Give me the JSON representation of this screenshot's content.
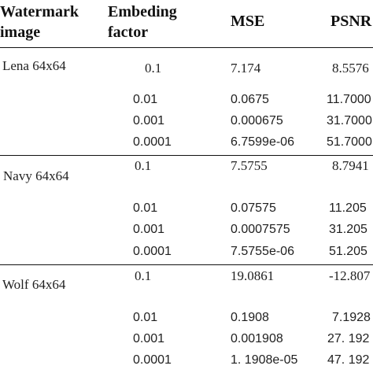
{
  "table": {
    "headers": {
      "watermark": [
        "Watermark",
        "image"
      ],
      "factor": [
        "Embeding",
        "factor"
      ],
      "mse": "MSE",
      "psnr": "PSNR"
    },
    "groups": [
      {
        "image": "Lena 64x64",
        "rows": [
          {
            "factor": "0.1",
            "mse": "7.174",
            "psnr": "8.5576"
          },
          {
            "factor": "0.01",
            "mse": "0.0675",
            "psnr": "11.7000"
          },
          {
            "factor": "0.001",
            "mse": "0.000675",
            "psnr": "31.7000"
          },
          {
            "factor": "0.0001",
            "mse": "6.7599e-06",
            "psnr": "51.7000"
          }
        ]
      },
      {
        "image": "Navy 64x64",
        "rows": [
          {
            "factor": "0.1",
            "mse": "7.5755",
            "psnr": "8.7941"
          },
          {
            "factor": "0.01",
            "mse": "0.07575",
            "psnr": "11.205"
          },
          {
            "factor": "0.001",
            "mse": "0.0007575",
            "psnr": "31.205"
          },
          {
            "factor": "0.0001",
            "mse": "7.5755e-06",
            "psnr": "51.205"
          }
        ]
      },
      {
        "image": "Wolf 64x64",
        "rows": [
          {
            "factor": "0.1",
            "mse": "19.0861",
            "psnr": "-12.807"
          },
          {
            "factor": "0.01",
            "mse": "0.1908",
            "psnr": "7.1928"
          },
          {
            "factor": "0.001",
            "mse": "0.001908",
            "psnr": "27. 192"
          },
          {
            "factor": "0.0001",
            "mse": "1. 1908e-05",
            "psnr": "47. 192"
          }
        ]
      }
    ]
  }
}
